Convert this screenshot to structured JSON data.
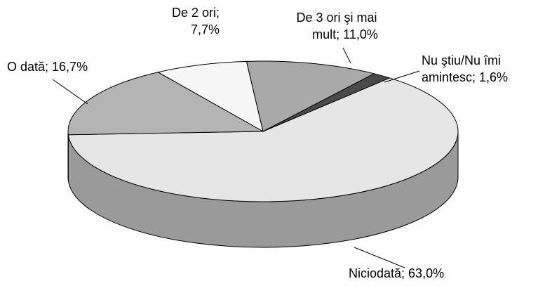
{
  "chart_data": {
    "type": "pie3d",
    "values": [
      63.0,
      16.7,
      7.7,
      11.0,
      1.6
    ],
    "value_labels": [
      "Niciodată; 63,0%",
      "O dată; 16,7%",
      "De 2 ori;\n7,7%",
      "De 3 ori şi mai\nmult; 11,0%",
      "Nu ştiu/Nu îmi\namintesc; 1,6%"
    ],
    "colors": [
      "#e6e6e6",
      "#b4b4b4",
      "#f7f7f7",
      "#a9a9a9",
      "#4a4a4a"
    ],
    "side_colors": [
      "#9a9a9a",
      "#6e6e6e",
      "#bbbbbb",
      "#777777",
      "#333333"
    ]
  }
}
